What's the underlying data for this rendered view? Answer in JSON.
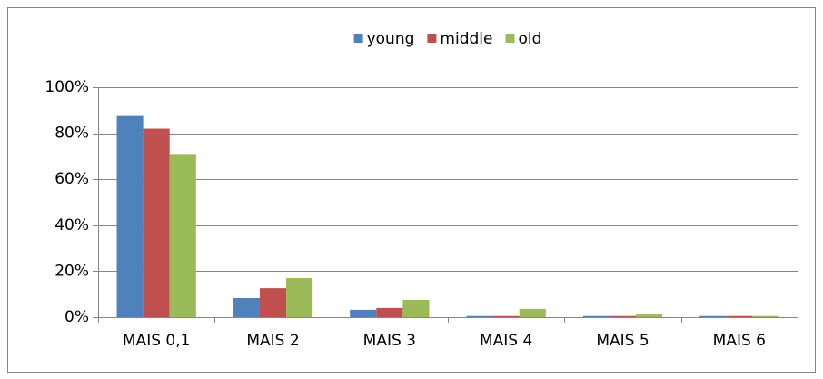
{
  "chart_data": {
    "type": "bar",
    "categories": [
      "MAIS 0,1",
      "MAIS 2",
      "MAIS 3",
      "MAIS 4",
      "MAIS 5",
      "MAIS 6"
    ],
    "series": [
      {
        "name": "young",
        "color": "#4f81bd",
        "values": [
          87.5,
          8.3,
          3.2,
          0.5,
          0.5,
          0.5
        ]
      },
      {
        "name": "middle",
        "color": "#c0504d",
        "values": [
          82,
          12.6,
          4,
          0.5,
          0.5,
          0.5
        ]
      },
      {
        "name": "old",
        "color": "#9bbb59",
        "values": [
          71,
          17,
          7.5,
          3.6,
          1.5,
          0.5
        ]
      }
    ],
    "ylim": [
      0,
      100
    ],
    "yticks": [
      {
        "value": 0,
        "label": "0%"
      },
      {
        "value": 20,
        "label": "20%"
      },
      {
        "value": 40,
        "label": "40%"
      },
      {
        "value": 60,
        "label": "60%"
      },
      {
        "value": 80,
        "label": "80%"
      },
      {
        "value": 100,
        "label": "100%"
      }
    ],
    "grid": true,
    "legend": "top"
  }
}
